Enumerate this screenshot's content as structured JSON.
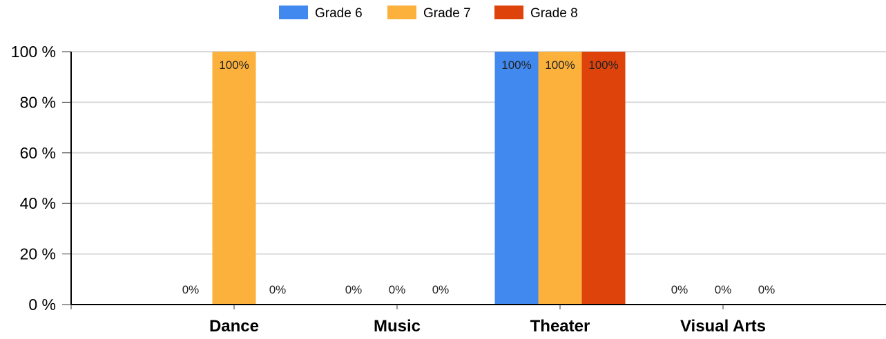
{
  "chart_data": {
    "type": "bar",
    "categories": [
      "Dance",
      "Music",
      "Theater",
      "Visual Arts"
    ],
    "series": [
      {
        "name": "Grade 6",
        "color": "#4189ef",
        "values": [
          0,
          0,
          100,
          0
        ],
        "labels": [
          "0%",
          "0%",
          "100%",
          "0%"
        ]
      },
      {
        "name": "Grade 7",
        "color": "#fbb13c",
        "values": [
          100,
          0,
          100,
          0
        ],
        "labels": [
          "100%",
          "0%",
          "100%",
          "0%"
        ]
      },
      {
        "name": "Grade 8",
        "color": "#df430c",
        "values": [
          0,
          0,
          100,
          0
        ],
        "labels": [
          "0%",
          "0%",
          "100%",
          "0%"
        ]
      }
    ],
    "yticks": [
      "0 %",
      "20 %",
      "40 %",
      "60 %",
      "80 %",
      "100 %"
    ],
    "ylim": [
      0,
      100
    ],
    "grid": true,
    "legend": "top-center"
  }
}
